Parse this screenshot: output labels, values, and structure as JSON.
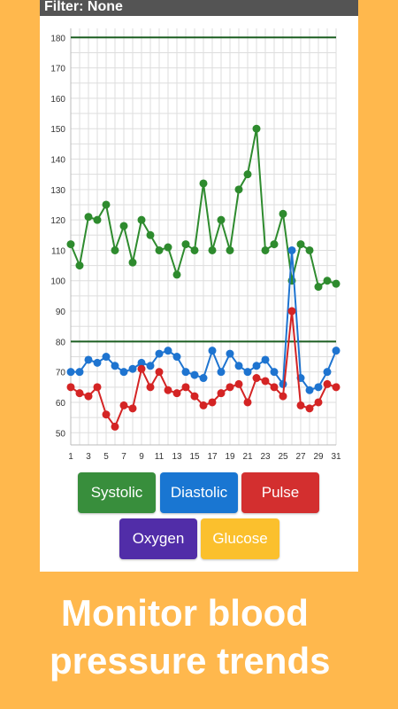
{
  "filter_label": "Filter: None",
  "buttons": {
    "systolic": {
      "label": "Systolic",
      "color": "#388E3C"
    },
    "diastolic": {
      "label": "Diastolic",
      "color": "#1976D2"
    },
    "pulse": {
      "label": "Pulse",
      "color": "#D32F2F"
    },
    "oxygen": {
      "label": "Oxygen",
      "color": "#512DA8"
    },
    "glucose": {
      "label": "Glucose",
      "color": "#FBC02D"
    }
  },
  "caption": {
    "line1": "Monitor blood",
    "line2": "pressure trends"
  },
  "colors": {
    "background": "#FFB84D",
    "threshold": "#1B5E20"
  },
  "chart_data": {
    "type": "line",
    "x": [
      1,
      2,
      3,
      4,
      5,
      6,
      7,
      8,
      9,
      10,
      11,
      12,
      13,
      14,
      15,
      16,
      17,
      18,
      19,
      20,
      21,
      22,
      23,
      24,
      25,
      26,
      27,
      28,
      29,
      30,
      31
    ],
    "x_ticks": [
      "1",
      "3",
      "5",
      "7",
      "9",
      "11",
      "13",
      "15",
      "17",
      "19",
      "21",
      "23",
      "25",
      "27",
      "29",
      "31"
    ],
    "y_ticks": [
      "50",
      "60",
      "70",
      "80",
      "90",
      "100",
      "110",
      "120",
      "130",
      "140",
      "150",
      "160",
      "170",
      "180"
    ],
    "ylim": [
      46,
      183
    ],
    "xlim": [
      1,
      31
    ],
    "grid": true,
    "thresholds": [
      180,
      80
    ],
    "series": [
      {
        "key": "systolic",
        "color": "#2E8B2E",
        "values": [
          112,
          105,
          121,
          120,
          125,
          110,
          118,
          106,
          120,
          115,
          110,
          111,
          102,
          112,
          110,
          132,
          110,
          120,
          110,
          130,
          135,
          150,
          110,
          112,
          122,
          100,
          112,
          110,
          98,
          100,
          99
        ]
      },
      {
        "key": "diastolic",
        "color": "#1E74D0",
        "values": [
          70,
          70,
          74,
          73,
          75,
          72,
          70,
          71,
          73,
          72,
          76,
          77,
          75,
          70,
          69,
          68,
          77,
          70,
          76,
          72,
          70,
          72,
          74,
          70,
          66,
          110,
          68,
          64,
          65,
          70,
          77
        ]
      },
      {
        "key": "pulse",
        "color": "#D42424",
        "values": [
          65,
          63,
          62,
          65,
          56,
          52,
          59,
          58,
          71,
          65,
          70,
          64,
          63,
          65,
          62,
          59,
          60,
          63,
          65,
          66,
          60,
          68,
          67,
          65,
          62,
          90,
          59,
          58,
          60,
          66,
          65
        ]
      }
    ]
  }
}
